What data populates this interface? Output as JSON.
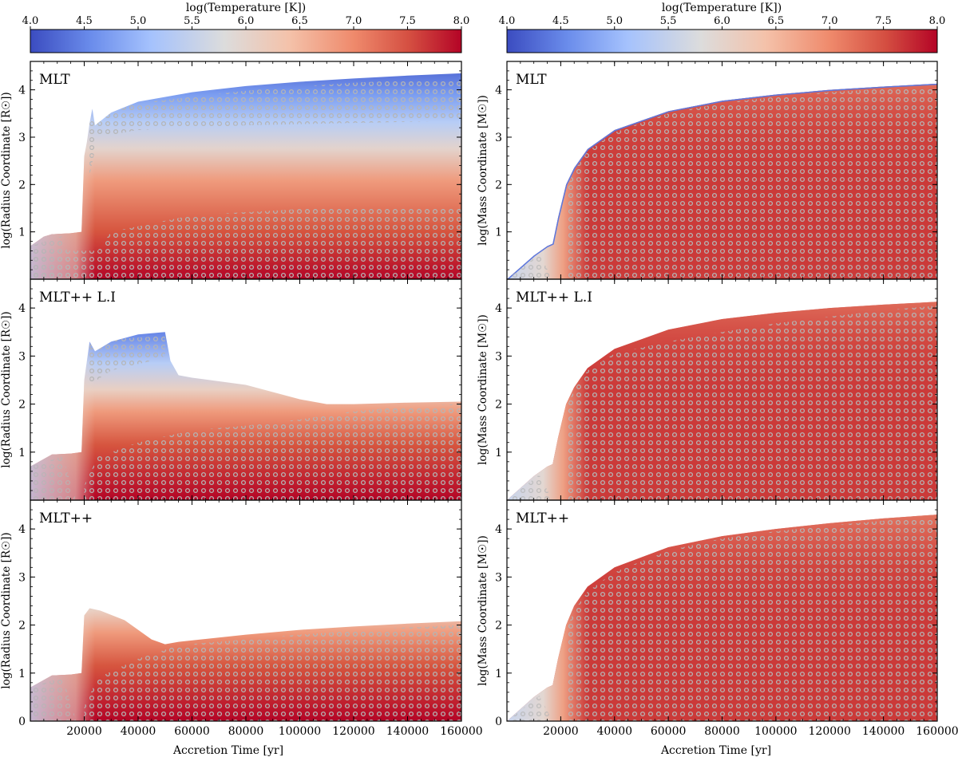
{
  "figure": {
    "colorbar": {
      "label": "log(Temperature [K])",
      "min": 4.0,
      "max": 8.0,
      "ticks": [
        "4.0",
        "4.5",
        "5.0",
        "5.5",
        "6.0",
        "6.5",
        "7.0",
        "7.5",
        "8.0"
      ],
      "colormap": [
        "#3b4cc0",
        "#7396f5",
        "#b0cbfc",
        "#dddcdc",
        "#f6bfa6",
        "#ee8468",
        "#c0282f",
        "#b40426"
      ]
    },
    "x_axis": {
      "label": "Accretion Time [yr]",
      "range": [
        0,
        160000
      ],
      "ticks": [
        "20000",
        "40000",
        "60000",
        "80000",
        "100000",
        "120000",
        "140000",
        "160000"
      ]
    },
    "y_ticks": [
      "1",
      "2",
      "3",
      "4"
    ],
    "y_ticks_bottom": [
      "0",
      "1",
      "2",
      "3",
      "4"
    ],
    "convective_marker_color": "#a9a9a9"
  },
  "chart_data": [
    {
      "type": "area",
      "panel": "left-top",
      "title": "MLT",
      "ylabel": "log(Radius Coordinate [R☉])",
      "xlim": [
        0,
        160000
      ],
      "ylim": [
        0,
        4.6
      ],
      "surface": {
        "x": [
          0,
          5000,
          8000,
          15000,
          19000,
          20000,
          21000,
          22000,
          23000,
          24000,
          30000,
          40000,
          60000,
          80000,
          100000,
          120000,
          140000,
          160000
        ],
        "y": [
          0.7,
          0.9,
          0.95,
          0.97,
          1.0,
          2.6,
          2.9,
          3.3,
          3.6,
          3.25,
          3.52,
          3.75,
          3.95,
          4.08,
          4.17,
          4.24,
          4.3,
          4.35
        ]
      },
      "temperature_bands": [
        {
          "x": [
            0,
            20000,
            21000,
            23000,
            30000,
            60000,
            100000,
            160000
          ],
          "y": [
            0.5,
            0.8,
            1.2,
            1.5,
            1.9,
            2.2,
            2.35,
            2.5
          ],
          "logT": 7.0
        },
        {
          "x": [
            0,
            20000,
            22000,
            30000,
            60000,
            100000,
            160000
          ],
          "y": [
            0.6,
            0.9,
            2.0,
            2.5,
            2.8,
            2.95,
            3.05
          ],
          "logT": 6.0
        },
        {
          "x": [
            0,
            20000,
            22000,
            30000,
            60000,
            100000,
            160000
          ],
          "y": [
            0.65,
            0.95,
            2.5,
            3.0,
            3.35,
            3.5,
            3.6
          ],
          "logT": 5.0
        }
      ],
      "convective_zones": [
        {
          "x": [
            0,
            25000,
            30000,
            60000,
            100000,
            160000
          ],
          "top": [
            0.6,
            0.6,
            1.0,
            1.35,
            1.48,
            1.55
          ],
          "bottom": [
            0,
            0,
            0,
            0,
            0,
            0
          ]
        },
        {
          "x": [
            22000,
            25000,
            40000,
            80000,
            120000,
            160000
          ],
          "top": [
            3.3,
            3.45,
            3.72,
            3.98,
            4.15,
            4.25
          ],
          "bottom": [
            2.2,
            3.0,
            3.15,
            3.25,
            3.3,
            3.35
          ]
        }
      ]
    },
    {
      "type": "area",
      "panel": "right-top",
      "title": "MLT",
      "ylabel": "log(Mass Coordinate [M☉])",
      "xlim": [
        0,
        160000
      ],
      "ylim": [
        0,
        4.6
      ],
      "surface": {
        "x": [
          0,
          10000,
          15000,
          17000,
          19000,
          22000,
          25000,
          30000,
          40000,
          60000,
          80000,
          100000,
          120000,
          140000,
          160000
        ],
        "y": [
          0.0,
          0.5,
          0.7,
          0.75,
          1.3,
          2.0,
          2.35,
          2.75,
          3.15,
          3.55,
          3.77,
          3.9,
          4.0,
          4.07,
          4.13
        ]
      },
      "convective_zones": [
        {
          "x": [
            22000,
            25000,
            30000,
            40000,
            60000,
            80000,
            100000,
            120000,
            140000,
            160000
          ],
          "top": [
            1.9,
            2.3,
            2.7,
            3.1,
            3.5,
            3.72,
            3.85,
            3.95,
            4.02,
            4.08
          ],
          "bottom": [
            0,
            0,
            0,
            0,
            0,
            0,
            0,
            0,
            0,
            0
          ]
        }
      ]
    },
    {
      "type": "area",
      "panel": "left-middle",
      "title": "MLT++ L.I",
      "ylabel": "log(Radius Coordinate [R☉])",
      "xlim": [
        0,
        160000
      ],
      "ylim": [
        0,
        4.6
      ],
      "surface": {
        "x": [
          0,
          8000,
          15000,
          19000,
          20000,
          22000,
          24000,
          30000,
          40000,
          50000,
          52000,
          55000,
          60000,
          80000,
          100000,
          110000,
          120000,
          140000,
          160000
        ],
        "y": [
          0.7,
          0.95,
          0.97,
          1.0,
          2.5,
          3.3,
          3.1,
          3.3,
          3.45,
          3.5,
          2.9,
          2.6,
          2.55,
          2.4,
          2.1,
          2.0,
          2.0,
          2.03,
          2.05
        ]
      },
      "convective_zones": [
        {
          "x": [
            20000,
            25000,
            40000,
            60000,
            80000,
            100000,
            120000,
            140000,
            160000
          ],
          "top": [
            0.3,
            0.9,
            1.2,
            1.45,
            1.55,
            1.68,
            1.85,
            1.95,
            2.0
          ],
          "bottom": [
            0,
            0,
            0,
            0,
            0,
            0,
            0,
            0,
            0
          ]
        },
        {
          "x": [
            22000,
            30000,
            45000,
            50000
          ],
          "top": [
            3.3,
            3.35,
            3.4,
            3.45
          ],
          "bottom": [
            2.4,
            2.7,
            2.9,
            3.0
          ]
        }
      ]
    },
    {
      "type": "area",
      "panel": "right-middle",
      "title": "MLT++ L.I",
      "ylabel": "log(Mass Coordinate [M☉])",
      "xlim": [
        0,
        160000
      ],
      "ylim": [
        0,
        4.6
      ],
      "surface": {
        "x": [
          0,
          10000,
          15000,
          17000,
          19000,
          22000,
          25000,
          30000,
          40000,
          60000,
          80000,
          100000,
          120000,
          140000,
          160000
        ],
        "y": [
          0.0,
          0.5,
          0.7,
          0.75,
          1.3,
          2.0,
          2.35,
          2.75,
          3.15,
          3.55,
          3.77,
          3.9,
          4.0,
          4.07,
          4.13
        ]
      },
      "convective_zones": [
        {
          "x": [
            22000,
            25000,
            30000,
            40000,
            60000,
            80000,
            100000,
            120000,
            140000,
            160000
          ],
          "top": [
            1.9,
            2.3,
            2.7,
            3.05,
            3.3,
            3.5,
            3.68,
            3.82,
            3.95,
            4.05
          ],
          "bottom": [
            0,
            0,
            0,
            0,
            0,
            0,
            0,
            0,
            0,
            0
          ]
        }
      ]
    },
    {
      "type": "area",
      "panel": "left-bottom",
      "title": "MLT++",
      "ylabel": "log(Radius Coordinate [R☉])",
      "xlim": [
        0,
        160000
      ],
      "ylim": [
        0,
        4.6
      ],
      "surface": {
        "x": [
          0,
          8000,
          15000,
          19000,
          20000,
          22000,
          26000,
          35000,
          45000,
          50000,
          55000,
          80000,
          100000,
          120000,
          140000,
          160000
        ],
        "y": [
          0.7,
          0.95,
          0.97,
          1.0,
          2.2,
          2.35,
          2.3,
          2.1,
          1.7,
          1.6,
          1.65,
          1.8,
          1.9,
          1.97,
          2.03,
          2.08
        ]
      },
      "convective_zones": [
        {
          "x": [
            20000,
            25000,
            40000,
            55000,
            80000,
            100000,
            120000,
            140000,
            160000
          ],
          "top": [
            0.3,
            0.9,
            1.3,
            1.58,
            1.7,
            1.8,
            1.88,
            1.95,
            2.0
          ],
          "bottom": [
            0,
            0,
            0,
            0,
            0,
            0,
            0,
            0,
            0
          ]
        }
      ]
    },
    {
      "type": "area",
      "panel": "right-bottom",
      "title": "MLT++",
      "ylabel": "log(Mass Coordinate [M☉])",
      "xlim": [
        0,
        160000
      ],
      "ylim": [
        0,
        4.6
      ],
      "surface": {
        "x": [
          0,
          10000,
          15000,
          17000,
          19000,
          22000,
          25000,
          30000,
          40000,
          60000,
          80000,
          100000,
          120000,
          140000,
          160000
        ],
        "y": [
          0.0,
          0.5,
          0.7,
          0.75,
          1.3,
          2.0,
          2.4,
          2.8,
          3.2,
          3.62,
          3.85,
          4.0,
          4.12,
          4.22,
          4.3
        ]
      },
      "convective_zones": [
        {
          "x": [
            22000,
            25000,
            30000,
            40000,
            60000,
            80000,
            100000,
            120000,
            140000,
            160000
          ],
          "top": [
            1.9,
            2.3,
            2.7,
            3.1,
            3.55,
            3.8,
            3.95,
            4.07,
            4.17,
            4.25
          ],
          "bottom": [
            0,
            0,
            0,
            0,
            0,
            0,
            0,
            0,
            0,
            0
          ]
        }
      ]
    }
  ]
}
